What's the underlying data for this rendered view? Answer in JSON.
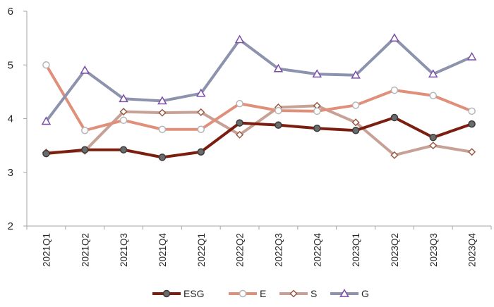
{
  "chart_data": {
    "type": "line",
    "title": "",
    "xlabel": "",
    "ylabel": "",
    "categories": [
      "2021Q1",
      "2021Q2",
      "2021Q3",
      "2021Q4",
      "2022Q1",
      "2022Q2",
      "2022Q3",
      "2022Q4",
      "2023Q1",
      "2023Q2",
      "2023Q3",
      "2023Q4"
    ],
    "ylim": [
      2,
      6
    ],
    "yticks": [
      2,
      3,
      4,
      5,
      6
    ],
    "grid": false,
    "legend_position": "bottom",
    "series": [
      {
        "name": "ESG",
        "color": "#7b1e0f",
        "marker": "circle",
        "marker_fill": "#6b6b6b",
        "values": [
          3.35,
          3.42,
          3.42,
          3.28,
          3.38,
          3.92,
          3.88,
          3.82,
          3.78,
          4.02,
          3.65,
          3.9
        ]
      },
      {
        "name": "E",
        "color": "#e0907a",
        "marker": "circle",
        "marker_fill": "#ffffff",
        "values": [
          5.0,
          3.78,
          3.97,
          3.8,
          3.8,
          4.28,
          4.15,
          4.14,
          4.25,
          4.53,
          4.43,
          4.14
        ]
      },
      {
        "name": "S",
        "color": "#c7a196",
        "marker": "diamond",
        "marker_fill": "#ffffff",
        "values": [
          3.37,
          3.4,
          4.13,
          4.11,
          4.12,
          3.7,
          4.21,
          4.24,
          3.93,
          3.32,
          3.5,
          3.38
        ]
      },
      {
        "name": "G",
        "color": "#8d92ad",
        "marker": "triangle",
        "marker_fill": "#ffffff",
        "values": [
          3.95,
          4.9,
          4.37,
          4.33,
          4.47,
          5.47,
          4.93,
          4.83,
          4.81,
          5.5,
          4.83,
          5.15
        ]
      }
    ]
  }
}
